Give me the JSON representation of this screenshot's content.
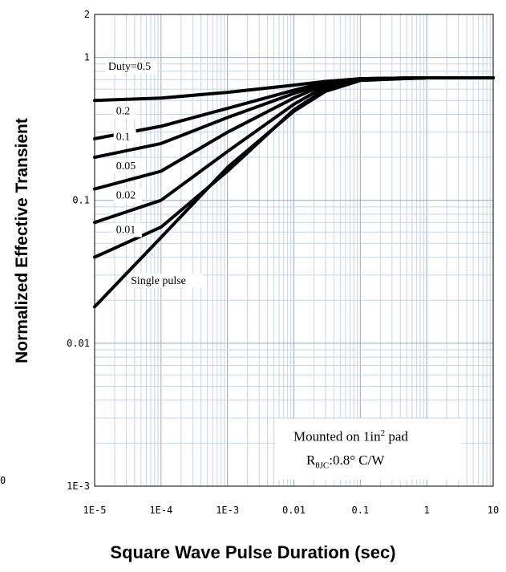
{
  "chart_data": {
    "type": "line",
    "title": "",
    "xlabel": "Square Wave Pulse Duration (sec)",
    "ylabel": "Normalized Effective Transient",
    "x_scale": "log",
    "y_scale": "log",
    "xlim": [
      1e-05,
      10
    ],
    "ylim": [
      0.001,
      2
    ],
    "grid": true,
    "x_ticks": [
      "1E-5",
      "1E-4",
      "1E-3",
      "0.01",
      "0.1",
      "1",
      "10"
    ],
    "x_tick_values": [
      1e-05,
      0.0001,
      0.001,
      0.01,
      0.1,
      1,
      10
    ],
    "y_ticks": [
      "1E-3",
      "0.01",
      "0.1",
      "1",
      "2"
    ],
    "y_tick_values": [
      0.001,
      0.01,
      0.1,
      1,
      2
    ],
    "series": [
      {
        "name": "Duty=0.5",
        "x": [
          1e-05,
          0.0001,
          0.001,
          0.01,
          0.03,
          0.1,
          1,
          10
        ],
        "y": [
          0.5,
          0.52,
          0.57,
          0.64,
          0.68,
          0.71,
          0.72,
          0.72
        ]
      },
      {
        "name": "0.2",
        "x": [
          1e-05,
          0.0001,
          0.001,
          0.01,
          0.03,
          0.1,
          1,
          10
        ],
        "y": [
          0.27,
          0.33,
          0.44,
          0.59,
          0.67,
          0.71,
          0.72,
          0.72
        ]
      },
      {
        "name": "0.1",
        "x": [
          1e-05,
          0.0001,
          0.001,
          0.01,
          0.03,
          0.1,
          1,
          10
        ],
        "y": [
          0.2,
          0.25,
          0.38,
          0.56,
          0.66,
          0.71,
          0.72,
          0.72
        ]
      },
      {
        "name": "0.05",
        "x": [
          1e-05,
          0.0001,
          0.001,
          0.01,
          0.03,
          0.1,
          1,
          10
        ],
        "y": [
          0.12,
          0.16,
          0.3,
          0.52,
          0.65,
          0.71,
          0.72,
          0.72
        ]
      },
      {
        "name": "0.02",
        "x": [
          1e-05,
          0.0001,
          0.001,
          0.01,
          0.03,
          0.1,
          1,
          10
        ],
        "y": [
          0.07,
          0.1,
          0.22,
          0.47,
          0.63,
          0.7,
          0.72,
          0.72
        ]
      },
      {
        "name": "0.01",
        "x": [
          1e-05,
          0.0001,
          0.001,
          0.01,
          0.03,
          0.1,
          1,
          10
        ],
        "y": [
          0.04,
          0.065,
          0.16,
          0.43,
          0.6,
          0.7,
          0.72,
          0.72
        ]
      },
      {
        "name": "Single pulse",
        "x": [
          1e-05,
          0.0001,
          0.001,
          0.01,
          0.03,
          0.1,
          1,
          10
        ],
        "y": [
          0.018,
          0.055,
          0.17,
          0.42,
          0.58,
          0.69,
          0.72,
          0.72
        ]
      }
    ],
    "curve_labels": [
      "Duty=0.5",
      "0.2",
      "0.1",
      "0.05",
      "0.02",
      "0.01",
      "Single pulse"
    ],
    "annotation": {
      "line1_text": "Mounted on 1in",
      "line1_sup": "2",
      "line1_suffix": " pad",
      "line2_main": "R",
      "line2_sub": "θJC",
      "line2_suffix": ":0.8°  C/W"
    },
    "colors": {
      "curve": "#000000",
      "minor_grid": "#c8d4e8",
      "major_grid": "#9aa8c0",
      "frame": "#000000"
    }
  },
  "stray_label": "0"
}
